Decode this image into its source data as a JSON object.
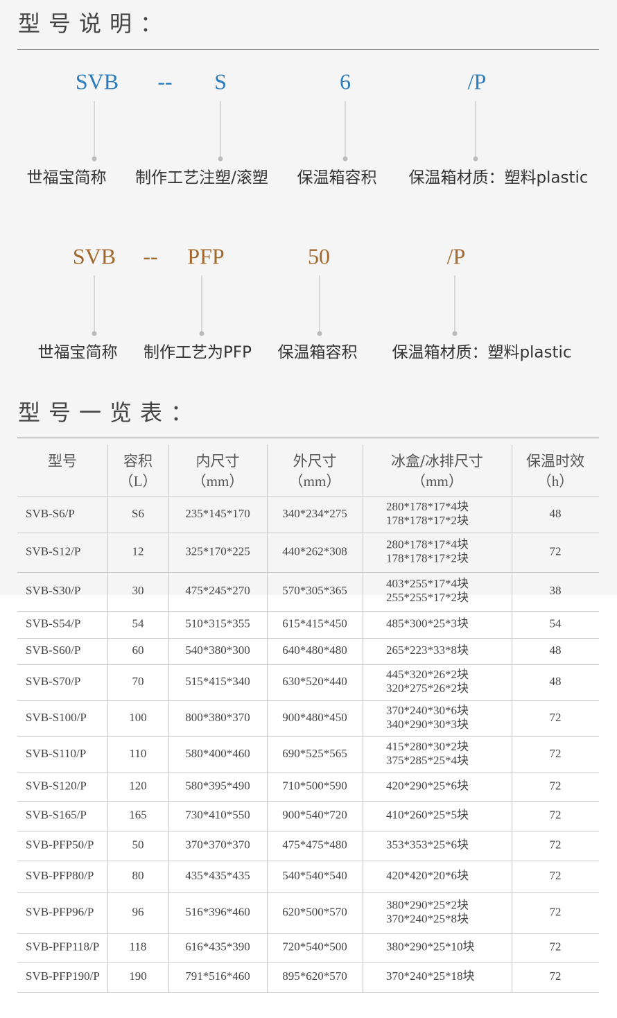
{
  "section1": {
    "title": "型号说明：",
    "diagram1": {
      "codes": [
        "SVB",
        "--",
        "S",
        "6",
        "/P"
      ],
      "labels": [
        "世福宝简称",
        "制作工艺注塑/滚塑",
        "保温箱容积",
        "保温箱材质：塑料plastic"
      ]
    },
    "diagram2": {
      "codes": [
        "SVB",
        "--",
        "PFP",
        "50",
        "/P"
      ],
      "labels": [
        "世福宝简称",
        "制作工艺为PFP",
        "保温箱容积",
        "保温箱材质：塑料plastic"
      ]
    }
  },
  "section2": {
    "title": "型号一览表："
  },
  "table": {
    "header": [
      [
        "型号"
      ],
      [
        "容积",
        "（L）"
      ],
      [
        "内尺寸",
        "（mm）"
      ],
      [
        "外尺寸",
        "（mm）"
      ],
      [
        "冰盒/冰排尺寸",
        "（mm）"
      ],
      [
        "保温时效",
        "（h）"
      ]
    ],
    "rows": [
      [
        "SVB-S6/P",
        "S6",
        "235*145*170",
        "340*234*275",
        [
          "280*178*17*4块",
          "178*178*17*2块"
        ],
        48
      ],
      [
        "SVB-S12/P",
        12,
        "325*170*225",
        "440*262*308",
        [
          "280*178*17*4块",
          "178*178*17*2块"
        ],
        72
      ],
      [
        "SVB-S30/P",
        30,
        "475*245*270",
        "570*305*365",
        [
          "403*255*17*4块",
          "255*255*17*2块"
        ],
        38
      ],
      [
        "SVB-S54/P",
        54,
        "510*315*355",
        "615*415*450",
        [
          "485*300*25*3块"
        ],
        54
      ],
      [
        "SVB-S60/P",
        60,
        "540*380*300",
        "640*480*480",
        [
          "265*223*33*8块"
        ],
        48
      ],
      [
        "SVB-S70/P",
        70,
        "515*415*340",
        "630*520*440",
        [
          "445*320*26*2块",
          "320*275*26*2块"
        ],
        48
      ],
      [
        "SVB-S100/P",
        100,
        "800*380*370",
        "900*480*450",
        [
          "370*240*30*6块",
          "340*290*30*3块"
        ],
        72
      ],
      [
        "SVB-S110/P",
        110,
        "580*400*460",
        "690*525*565",
        [
          "415*280*30*2块",
          "375*285*25*4块"
        ],
        72
      ],
      [
        "SVB-S120/P",
        120,
        "580*395*490",
        "710*500*590",
        [
          "420*290*25*6块"
        ],
        72
      ],
      [
        "SVB-S165/P",
        165,
        "730*410*550",
        "900*540*720",
        [
          "410*260*25*5块"
        ],
        72
      ],
      [
        "SVB-PFP50/P",
        50,
        "370*370*370",
        "475*475*480",
        [
          "353*353*25*6块"
        ],
        72
      ],
      [
        "SVB-PFP80/P",
        80,
        "435*435*435",
        "540*540*540",
        [
          "420*420*20*6块"
        ],
        72
      ],
      [
        "SVB-PFP96/P",
        96,
        "516*396*460",
        "620*500*570",
        [
          "380*290*25*2块",
          "370*240*25*8块"
        ],
        72
      ],
      [
        "SVB-PFP118/P",
        118,
        "616*435*390",
        "720*540*500",
        [
          "380*290*25*10块"
        ],
        72
      ],
      [
        "SVB-PFP190/P",
        190,
        "791*516*460",
        "895*620*570",
        [
          "370*240*25*18块"
        ],
        72
      ]
    ]
  }
}
